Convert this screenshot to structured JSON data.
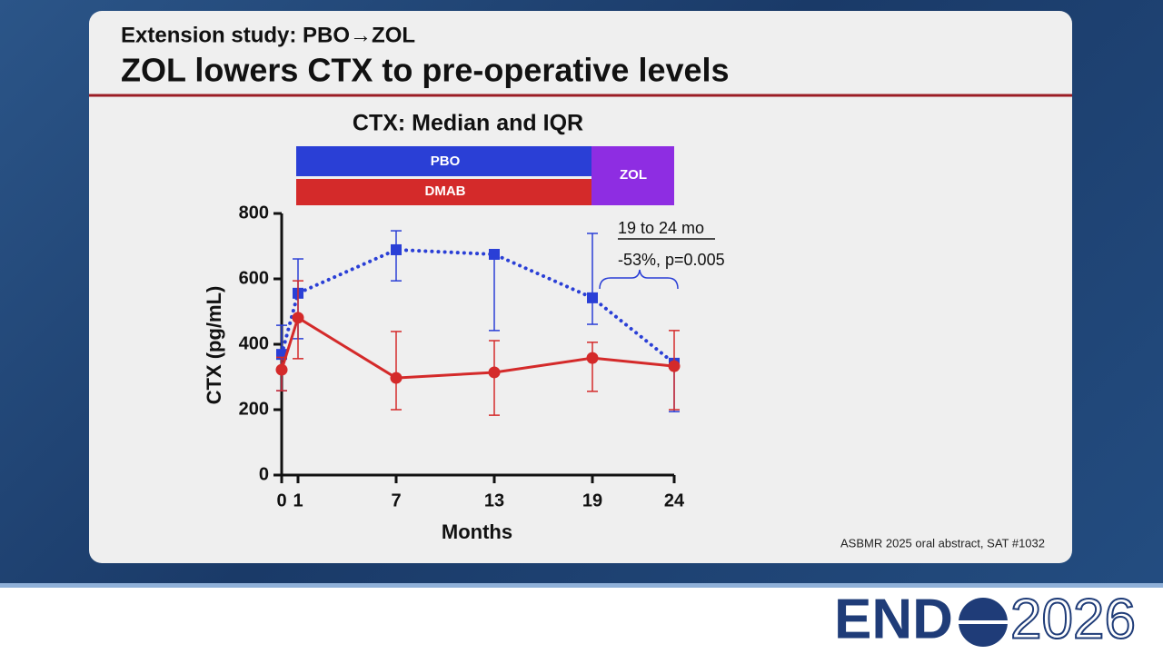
{
  "header": {
    "subtitle": "Extension study: PBO→ZOL",
    "title": "ZOL lowers CTX to pre-operative levels"
  },
  "chart_data": {
    "type": "line",
    "title": "CTX: Median and IQR",
    "x_label": "Months",
    "y_label": "CTX (pg/mL)",
    "x": [
      0,
      1,
      7,
      13,
      19,
      24
    ],
    "xlim": [
      0,
      24
    ],
    "xticks": [
      0,
      1,
      7,
      13,
      19,
      24
    ],
    "ylim": [
      0,
      800
    ],
    "yticks": [
      0,
      200,
      400,
      600,
      800
    ],
    "grid": false,
    "series": [
      {
        "name": "PBO",
        "color": "#2a3fd6",
        "line_style": "dotted",
        "marker": "square",
        "values": [
          369,
          556,
          689,
          675,
          542,
          342
        ],
        "lower": [
          258,
          417,
          594,
          442,
          461,
          194
        ],
        "upper": [
          458,
          661,
          747,
          680,
          739,
          345
        ]
      },
      {
        "name": "DMAB",
        "color": "#d42a2a",
        "line_style": "solid",
        "marker": "circle",
        "values": [
          322,
          481,
          297,
          314,
          358,
          333
        ],
        "lower": [
          258,
          356,
          200,
          183,
          256,
          200
        ],
        "upper": [
          360,
          594,
          439,
          411,
          406,
          442
        ]
      }
    ],
    "annotations": {
      "phase2": "ZOL",
      "phase2_color": "#8e2de2",
      "range_label": "19 to 24 mo",
      "result": "-53%, p=0.005"
    }
  },
  "footnote": "ASBMR 2025 oral abstract, SAT #1032",
  "logo": {
    "left": "END",
    "right": "2026"
  }
}
